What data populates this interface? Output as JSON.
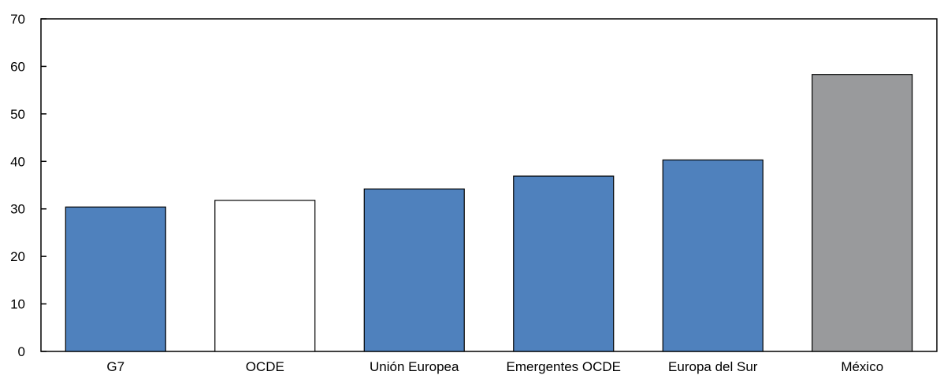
{
  "chart_data": {
    "type": "bar",
    "categories": [
      "G7",
      "OCDE",
      "Unión Europea",
      "Emergentes OCDE",
      "Europa del Sur",
      "México"
    ],
    "values": [
      30.4,
      31.8,
      34.2,
      36.9,
      40.3,
      58.3
    ],
    "bar_colors": [
      "#4f81bd",
      "#ffffff",
      "#4f81bd",
      "#4f81bd",
      "#4f81bd",
      "#999a9c"
    ],
    "yticks": [
      "0",
      "10",
      "20",
      "30",
      "40",
      "50",
      "60",
      "70"
    ],
    "ylim": [
      0,
      70
    ],
    "title": "",
    "xlabel": "",
    "ylabel": "",
    "grid": false,
    "legend": "none"
  }
}
